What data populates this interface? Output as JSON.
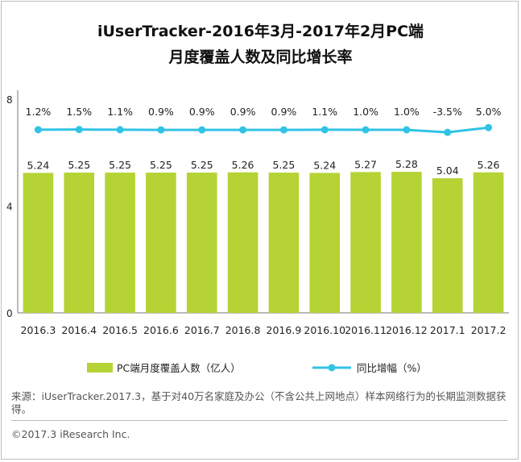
{
  "title_line1": "iUserTracker-2016年3月-2017年2月PC端",
  "title_line2": "月度覆盖人数及同比增长率",
  "chart_data": {
    "type": "bar",
    "categories": [
      "2016.3",
      "2016.4",
      "2016.5",
      "2016.6",
      "2016.7",
      "2016.8",
      "2016.9",
      "2016.10",
      "2016.11",
      "2016.12",
      "2017.1",
      "2017.2"
    ],
    "series": [
      {
        "name": "PC端月度覆盖人数（亿人）",
        "type": "bar",
        "color": "#b5d334",
        "values": [
          5.24,
          5.25,
          5.25,
          5.25,
          5.25,
          5.26,
          5.25,
          5.24,
          5.27,
          5.28,
          5.04,
          5.26
        ],
        "labels": [
          "5.24",
          "5.25",
          "5.25",
          "5.25",
          "5.25",
          "5.26",
          "5.25",
          "5.24",
          "5.27",
          "5.28",
          "5.04",
          "5.26"
        ]
      },
      {
        "name": "同比增幅（%）",
        "type": "line",
        "color": "#31c3e6",
        "values": [
          1.2,
          1.5,
          1.1,
          0.9,
          0.9,
          0.9,
          0.9,
          1.1,
          1.0,
          1.0,
          -3.5,
          5.0
        ],
        "labels": [
          "1.2%",
          "1.5%",
          "1.1%",
          "0.9%",
          "0.9%",
          "0.9%",
          "0.9%",
          "1.1%",
          "1.0%",
          "1.0%",
          "-3.5%",
          "5.0%"
        ]
      }
    ],
    "yticks": [
      "0",
      "4",
      "8"
    ],
    "ylim": [
      0,
      8
    ],
    "legend_position": "bottom"
  },
  "note": "来源：iUserTracker.2017.3，基于对40万名家庭及办公（不含公共上网地点）样本网络行为的长期监测数据获得。",
  "copyright": "©2017.3 iResearch Inc."
}
